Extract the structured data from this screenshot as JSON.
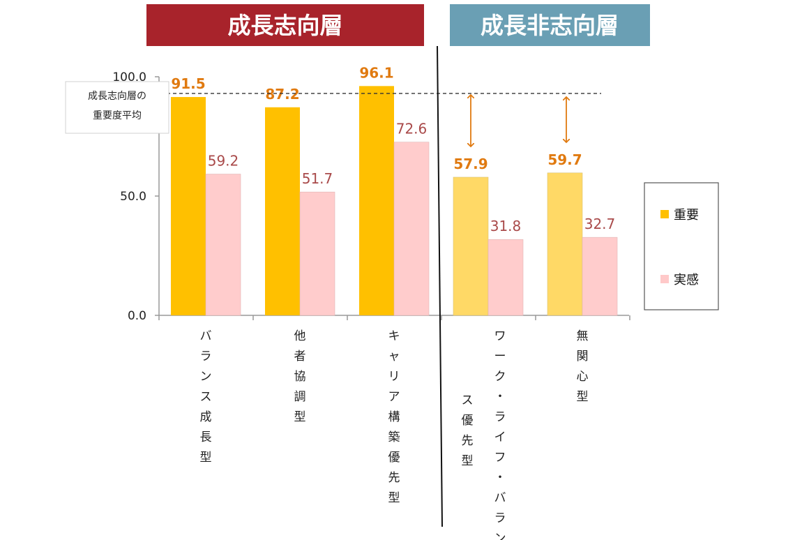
{
  "banners": {
    "growth": {
      "label": "成長志向層",
      "color": "#a8232b"
    },
    "non_growth": {
      "label": "成長非志向層",
      "color": "#6a9fb4"
    }
  },
  "avg_label": [
    "成長志向層の",
    "重要度平均"
  ],
  "legend": {
    "important": {
      "label": "重要",
      "color": "#ffc000"
    },
    "actual": {
      "label": "実感",
      "color": "#ffc9c9"
    }
  },
  "colors": {
    "important_growth": "#ffc000",
    "important_non_growth": "#ffd966",
    "actual": "#ffcccc",
    "important_label": "#e07a10",
    "actual_label": "#a94a4a",
    "arrow": "#e07a10"
  },
  "chart_data": {
    "type": "bar",
    "categories": [
      [
        "バ",
        "ラ",
        "ン",
        "ス",
        "成",
        "長",
        "型"
      ],
      [
        "他",
        "者",
        "協",
        "調",
        "型"
      ],
      [
        "キ",
        "ャ",
        "リ",
        "ア",
        "構",
        "築",
        "優",
        "先",
        "型"
      ],
      [
        [
          "ワ",
          "ー",
          "ク",
          "・",
          "ラ",
          "イ",
          "フ",
          "・",
          "バ",
          "ラ",
          "ン"
        ],
        [
          "ス",
          "優",
          "先",
          "型"
        ]
      ],
      [
        "無",
        "関",
        "心",
        "型"
      ]
    ],
    "series": [
      {
        "name": "重要",
        "values": [
          91.5,
          87.2,
          96.1,
          57.9,
          59.7
        ],
        "labels": [
          "91.5",
          "87.2",
          "96.1",
          "57.9",
          "59.7"
        ]
      },
      {
        "name": "実感",
        "values": [
          59.2,
          51.7,
          72.6,
          31.8,
          32.7
        ],
        "labels": [
          "59.2",
          "51.7",
          "72.6",
          "31.8",
          "32.7"
        ]
      }
    ],
    "yticks": [
      "0.0",
      "50.0",
      "100.0"
    ],
    "ylim": [
      0,
      100
    ],
    "average_line": 93.0,
    "groups": [
      "成長志向層",
      "成長非志向層"
    ],
    "legend_position": "right"
  }
}
